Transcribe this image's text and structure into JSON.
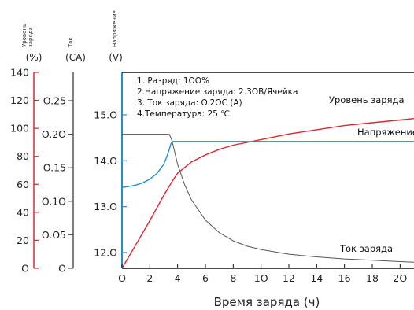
{
  "chart_data": {
    "type": "line",
    "title": "",
    "xlabel": "Время заряда (ч)",
    "xlim": [
      0,
      21
    ],
    "xticks": [
      0,
      2,
      4,
      6,
      8,
      10,
      12,
      14,
      16,
      18,
      20
    ],
    "axes": [
      {
        "id": "level",
        "title": "Уровень заряда",
        "unit": "(%)",
        "color": "#e0262f",
        "range": [
          0,
          140
        ],
        "ticks": [
          0,
          20,
          40,
          60,
          80,
          100,
          120,
          140
        ],
        "tick_labels": [
          "O",
          "20",
          "40",
          "60",
          "80",
          "100",
          "120",
          "140"
        ]
      },
      {
        "id": "current",
        "title": "Ток",
        "unit": "(CA)",
        "color": "#555555",
        "range": [
          0,
          0.3
        ],
        "ticks": [
          0,
          0.05,
          0.1,
          0.15,
          0.2,
          0.25
        ],
        "tick_labels": [
          "O",
          "O.O5",
          "O.1O",
          "O.15",
          "O.2O",
          "O.25"
        ]
      },
      {
        "id": "voltage",
        "title": "Напряжение",
        "unit": "(V)",
        "color": "#1f8fd0",
        "range": [
          11.6,
          15.8
        ],
        "ticks": [
          12.0,
          13.0,
          14.0,
          15.0
        ],
        "tick_labels": [
          "12.O",
          "13.O",
          "14.O",
          "15.O"
        ]
      }
    ],
    "notes": [
      "1. Разряд: 1OO%",
      "2.Напряжение заряда: 2.3OВ/Ячейка",
      "3. Ток заряда: O.2OC (A)",
      "4.Температура: 25 ℃"
    ],
    "series": [
      {
        "name": "Уровень заряда",
        "axis": "level",
        "color": "#e0262f",
        "x": [
          0,
          1,
          2,
          3,
          3.6,
          4,
          5,
          6,
          7,
          8,
          10,
          12,
          14,
          16,
          18,
          20,
          21
        ],
        "y": [
          0,
          17,
          34,
          52,
          62,
          68,
          76,
          81,
          85,
          88,
          92,
          96,
          99,
          102,
          104,
          106,
          107
        ]
      },
      {
        "name": "Напряжение",
        "axis": "voltage",
        "color": "#1f8fd0",
        "x": [
          0,
          0.5,
          1,
          1.5,
          2,
          2.5,
          3,
          3.2,
          3.4,
          3.5,
          3.6,
          4,
          6,
          8,
          10,
          12,
          14,
          16,
          18,
          20,
          21
        ],
        "y": [
          13.42,
          13.44,
          13.47,
          13.52,
          13.6,
          13.72,
          13.92,
          14.07,
          14.25,
          14.35,
          14.42,
          14.42,
          14.42,
          14.42,
          14.42,
          14.42,
          14.42,
          14.42,
          14.42,
          14.42,
          14.42
        ]
      },
      {
        "name": "Ток заряда",
        "axis": "current",
        "color": "#555555",
        "x": [
          0,
          2,
          3.4,
          3.6,
          4,
          4.5,
          5,
          6,
          7,
          8,
          9,
          10,
          12,
          14,
          16,
          18,
          20,
          21
        ],
        "y": [
          0.2,
          0.2,
          0.2,
          0.19,
          0.155,
          0.125,
          0.102,
          0.072,
          0.053,
          0.041,
          0.033,
          0.028,
          0.021,
          0.017,
          0.014,
          0.012,
          0.01,
          0.009
        ]
      }
    ]
  }
}
